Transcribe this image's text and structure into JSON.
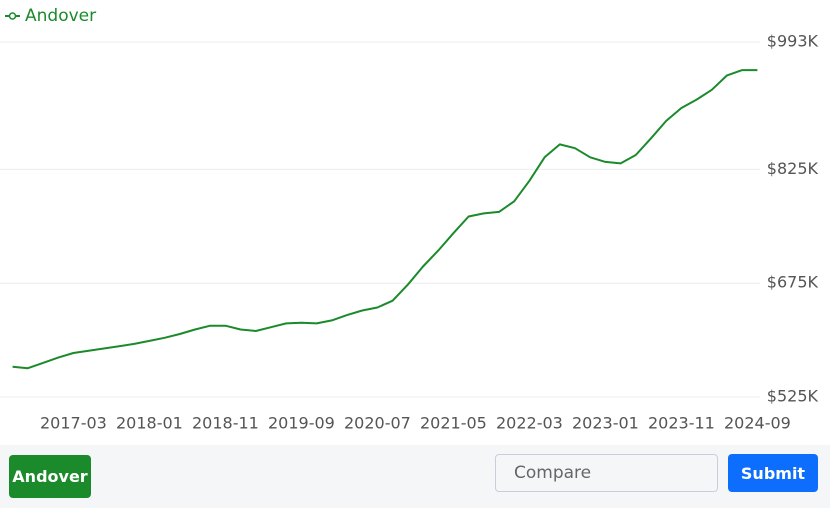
{
  "chart_data": {
    "type": "line",
    "x": [
      "2016-07",
      "2016-09",
      "2016-11",
      "2017-01",
      "2017-03",
      "2017-05",
      "2017-07",
      "2017-09",
      "2017-11",
      "2018-01",
      "2018-03",
      "2018-05",
      "2018-07",
      "2018-09",
      "2018-11",
      "2019-01",
      "2019-03",
      "2019-05",
      "2019-07",
      "2019-09",
      "2019-11",
      "2020-01",
      "2020-03",
      "2020-05",
      "2020-07",
      "2020-09",
      "2020-11",
      "2021-01",
      "2021-03",
      "2021-05",
      "2021-07",
      "2021-09",
      "2021-11",
      "2022-01",
      "2022-03",
      "2022-05",
      "2022-07",
      "2022-09",
      "2022-11",
      "2023-01",
      "2023-03",
      "2023-05",
      "2023-07",
      "2023-09",
      "2023-11",
      "2024-01",
      "2024-03",
      "2024-05",
      "2024-07",
      "2024-09"
    ],
    "series": [
      {
        "name": "Andover",
        "color": "#1b8a2b",
        "values": [
          565000,
          563000,
          570000,
          577000,
          583000,
          586000,
          589000,
          592000,
          595000,
          599000,
          603000,
          608000,
          614000,
          619000,
          619000,
          614000,
          612000,
          617000,
          622000,
          623000,
          622000,
          626000,
          633000,
          639000,
          643000,
          652000,
          673000,
          697000,
          718000,
          741000,
          763000,
          767000,
          769000,
          783000,
          810000,
          841000,
          858000,
          853000,
          841000,
          835000,
          833000,
          844000,
          866000,
          889000,
          906000,
          917000,
          930000,
          949000,
          956000,
          956000
        ]
      }
    ],
    "xticks": [
      "2017-03",
      "2018-01",
      "2018-11",
      "2019-09",
      "2020-07",
      "2021-05",
      "2022-03",
      "2023-01",
      "2023-11",
      "2024-09"
    ],
    "ylim": [
      525000,
      993000
    ],
    "yticks": [
      {
        "value": 525000,
        "label": "$525K"
      },
      {
        "value": 675000,
        "label": "$675K"
      },
      {
        "value": 825000,
        "label": "$825K"
      },
      {
        "value": 993000,
        "label": "$993K"
      }
    ],
    "grid": true
  },
  "ui": {
    "location_button": "Andover",
    "compare_placeholder": "Compare",
    "submit_button": "Submit"
  }
}
